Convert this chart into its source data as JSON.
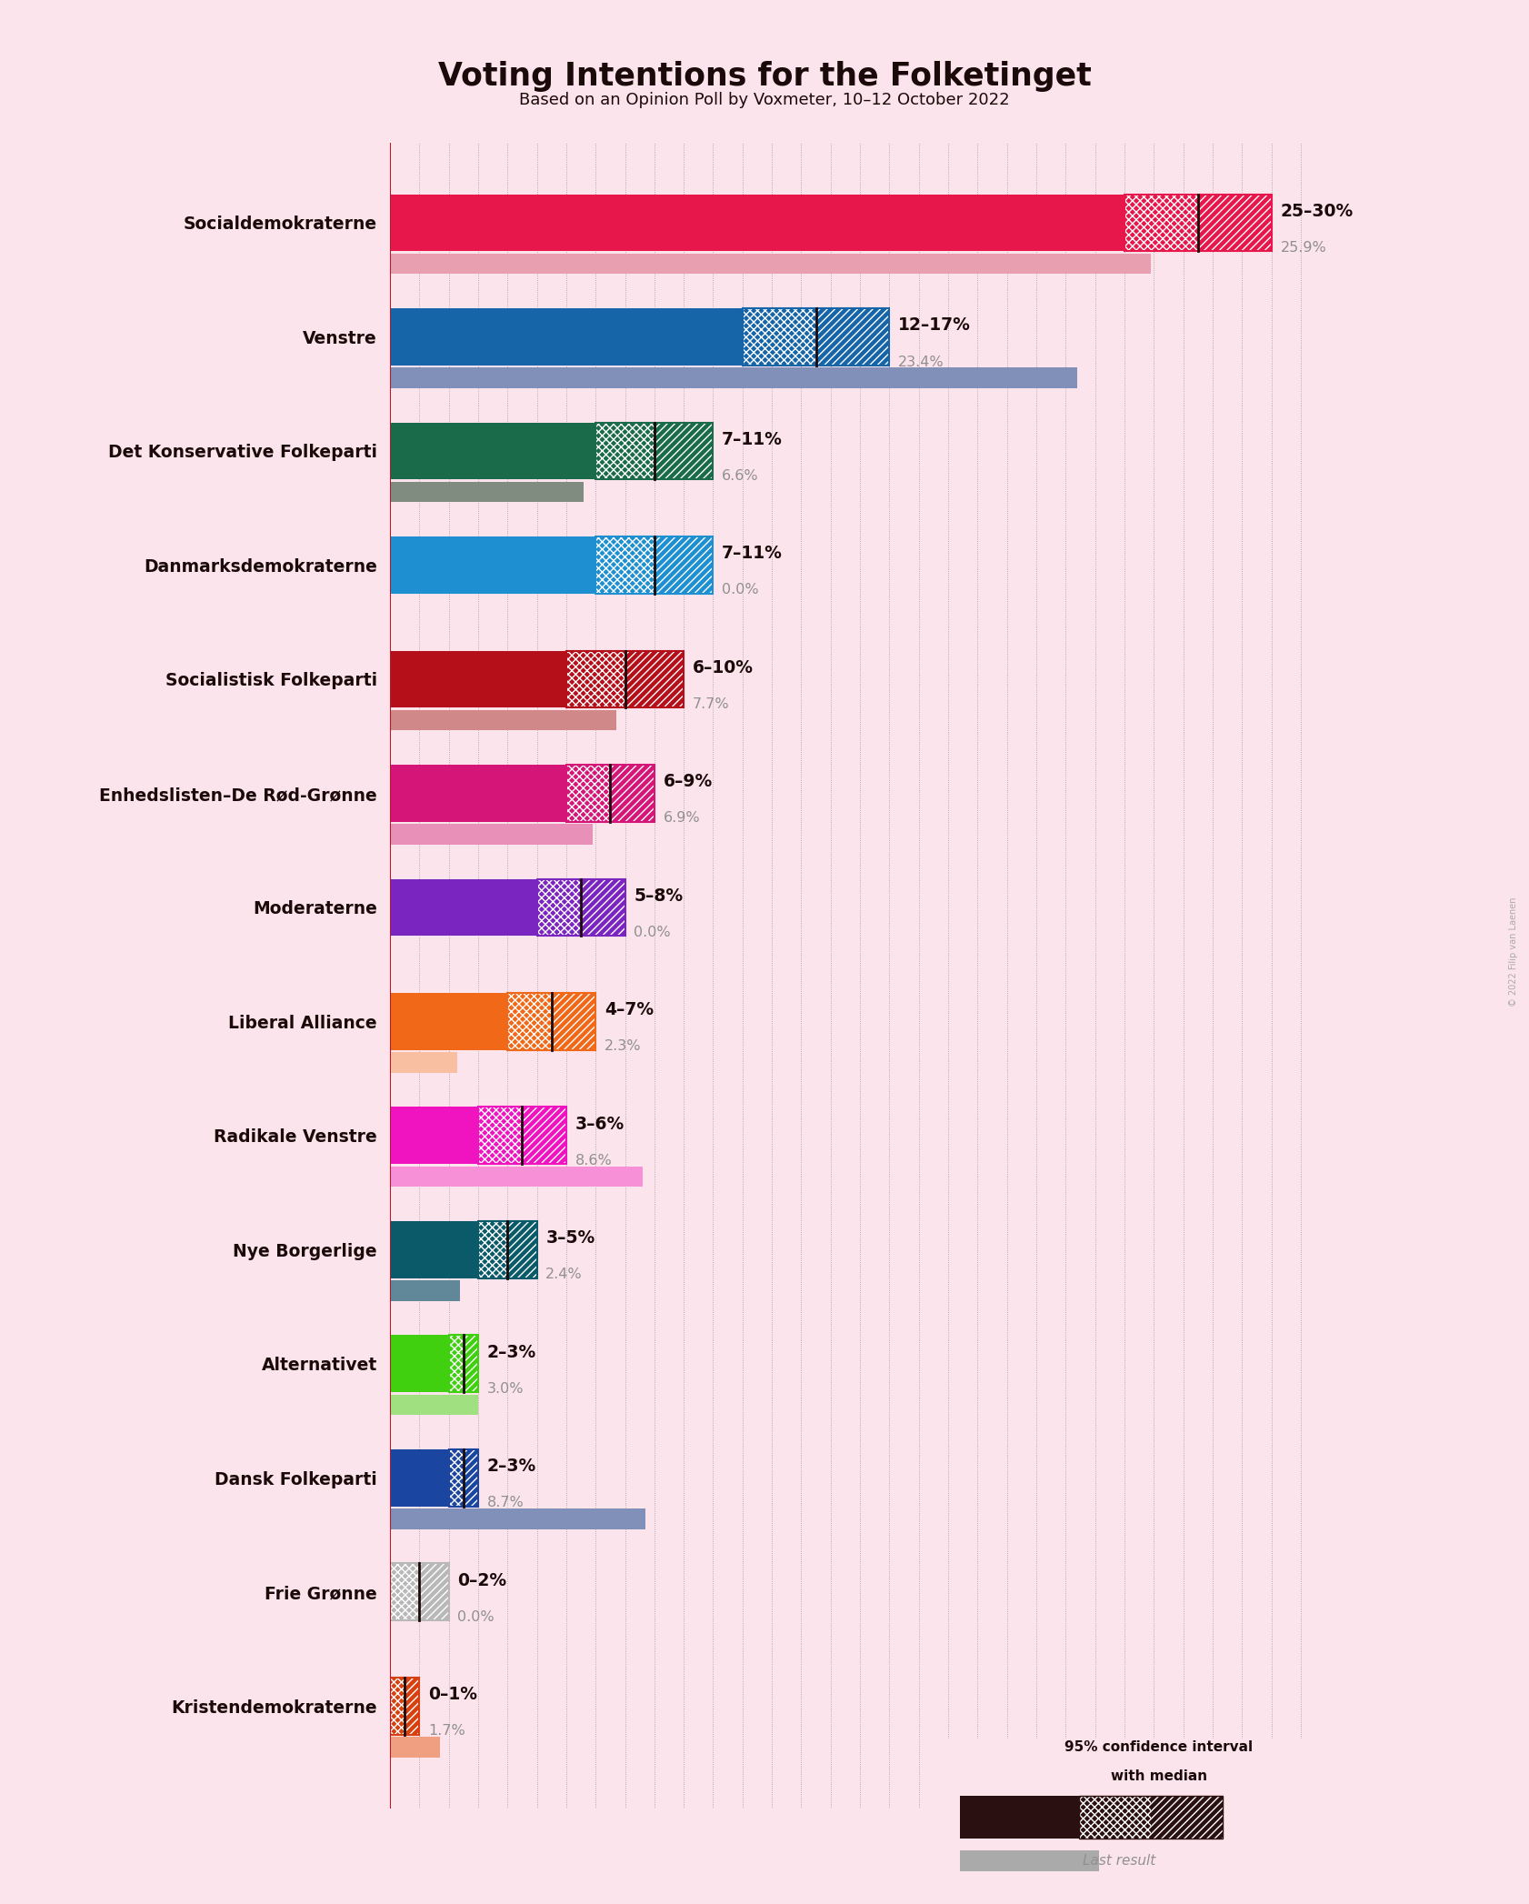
{
  "title": "Voting Intentions for the Folketinget",
  "subtitle": "Based on an Opinion Poll by Voxmeter, 10–12 October 2022",
  "copyright": "© 2022 Filip van Laenen",
  "background_color": "#fce4ec",
  "parties": [
    "Socialdemokraterne",
    "Venstre",
    "Det Konservative Folkeparti",
    "Danmarksdemokraterne",
    "Socialistisk Folkeparti",
    "Enhedslisten–De Rød-Grønne",
    "Moderaterne",
    "Liberal Alliance",
    "Radikale Venstre",
    "Nye Borgerlige",
    "Alternativet",
    "Dansk Folkeparti",
    "Frie Grønne",
    "Kristendemokraterne"
  ],
  "ci_low": [
    25,
    12,
    7,
    7,
    6,
    6,
    5,
    4,
    3,
    3,
    2,
    2,
    0,
    0
  ],
  "ci_high": [
    30,
    17,
    11,
    11,
    10,
    9,
    8,
    7,
    6,
    5,
    3,
    3,
    2,
    1
  ],
  "last_result": [
    25.9,
    23.4,
    6.6,
    0.0,
    7.7,
    6.9,
    0.0,
    2.3,
    8.6,
    2.4,
    3.0,
    8.7,
    0.0,
    1.7
  ],
  "range_labels": [
    "25–30%",
    "12–17%",
    "7–11%",
    "7–11%",
    "6–10%",
    "6–9%",
    "5–8%",
    "4–7%",
    "3–6%",
    "3–5%",
    "2–3%",
    "2–3%",
    "0–2%",
    "0–1%"
  ],
  "last_labels": [
    "25.9%",
    "23.4%",
    "6.6%",
    "0.0%",
    "7.7%",
    "6.9%",
    "0.0%",
    "2.3%",
    "8.6%",
    "2.4%",
    "3.0%",
    "8.7%",
    "0.0%",
    "1.7%"
  ],
  "bar_colors": [
    "#e8174b",
    "#1565a8",
    "#1a6b4a",
    "#1e8fd0",
    "#b50f1a",
    "#d61578",
    "#7b25c0",
    "#f06818",
    "#f014c0",
    "#0a5a6a",
    "#40d010",
    "#1a45a0",
    "#b8b8b8",
    "#d84010"
  ],
  "last_bar_colors": [
    "#e8a0b0",
    "#8090b8",
    "#808c80",
    "#80a8c8",
    "#d08888",
    "#e890b8",
    "#b090d0",
    "#f8c0a0",
    "#f890d8",
    "#608898",
    "#a0e080",
    "#8090b8",
    "#c8c8c8",
    "#f0a080"
  ],
  "xlim_max": 32,
  "grid_step": 1
}
